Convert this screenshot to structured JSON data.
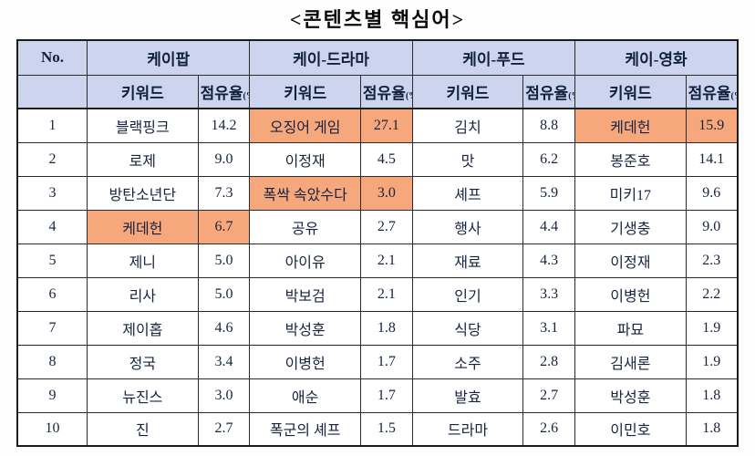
{
  "title": "<콘텐츠별 핵심어>",
  "colors": {
    "header_bg": "#ccd5ed",
    "highlight_bg": "#f6a77c",
    "text": "#17233f",
    "border": "#1c1c1c"
  },
  "table": {
    "no_header": "No.",
    "keyword_header": "키워드",
    "share_header": "점유율",
    "share_unit": "(%)",
    "groups": [
      "케이팝",
      "케이-드라마",
      "케이-푸드",
      "케이-영화"
    ],
    "rows": [
      {
        "no": "1",
        "cells": [
          {
            "kw": "블랙핑크",
            "v": "14.2",
            "hl": false
          },
          {
            "kw": "오징어 게임",
            "v": "27.1",
            "hl": true
          },
          {
            "kw": "김치",
            "v": "8.8",
            "hl": false
          },
          {
            "kw": "케데헌",
            "v": "15.9",
            "hl": true
          }
        ]
      },
      {
        "no": "2",
        "cells": [
          {
            "kw": "로제",
            "v": "9.0",
            "hl": false
          },
          {
            "kw": "이정재",
            "v": "4.5",
            "hl": false
          },
          {
            "kw": "맛",
            "v": "6.2",
            "hl": false
          },
          {
            "kw": "봉준호",
            "v": "14.1",
            "hl": false
          }
        ]
      },
      {
        "no": "3",
        "cells": [
          {
            "kw": "방탄소년단",
            "v": "7.3",
            "hl": false
          },
          {
            "kw": "폭싹 속았수다",
            "v": "3.0",
            "hl": true
          },
          {
            "kw": "셰프",
            "v": "5.9",
            "hl": false
          },
          {
            "kw": "미키17",
            "v": "9.6",
            "hl": false
          }
        ]
      },
      {
        "no": "4",
        "cells": [
          {
            "kw": "케데헌",
            "v": "6.7",
            "hl": true
          },
          {
            "kw": "공유",
            "v": "2.7",
            "hl": false
          },
          {
            "kw": "행사",
            "v": "4.4",
            "hl": false
          },
          {
            "kw": "기생충",
            "v": "9.0",
            "hl": false
          }
        ]
      },
      {
        "no": "5",
        "cells": [
          {
            "kw": "제니",
            "v": "5.0",
            "hl": false
          },
          {
            "kw": "아이유",
            "v": "2.1",
            "hl": false
          },
          {
            "kw": "재료",
            "v": "4.3",
            "hl": false
          },
          {
            "kw": "이정재",
            "v": "2.3",
            "hl": false
          }
        ]
      },
      {
        "no": "6",
        "cells": [
          {
            "kw": "리사",
            "v": "5.0",
            "hl": false
          },
          {
            "kw": "박보검",
            "v": "2.1",
            "hl": false
          },
          {
            "kw": "인기",
            "v": "3.3",
            "hl": false
          },
          {
            "kw": "이병헌",
            "v": "2.2",
            "hl": false
          }
        ]
      },
      {
        "no": "7",
        "cells": [
          {
            "kw": "제이홉",
            "v": "4.6",
            "hl": false
          },
          {
            "kw": "박성훈",
            "v": "1.8",
            "hl": false
          },
          {
            "kw": "식당",
            "v": "3.1",
            "hl": false
          },
          {
            "kw": "파묘",
            "v": "1.9",
            "hl": false
          }
        ]
      },
      {
        "no": "8",
        "cells": [
          {
            "kw": "정국",
            "v": "3.4",
            "hl": false
          },
          {
            "kw": "이병헌",
            "v": "1.7",
            "hl": false
          },
          {
            "kw": "소주",
            "v": "2.8",
            "hl": false
          },
          {
            "kw": "김새론",
            "v": "1.9",
            "hl": false
          }
        ]
      },
      {
        "no": "9",
        "cells": [
          {
            "kw": "뉴진스",
            "v": "3.0",
            "hl": false
          },
          {
            "kw": "애순",
            "v": "1.7",
            "hl": false
          },
          {
            "kw": "발효",
            "v": "2.7",
            "hl": false
          },
          {
            "kw": "박성훈",
            "v": "1.8",
            "hl": false
          }
        ]
      },
      {
        "no": "10",
        "cells": [
          {
            "kw": "진",
            "v": "2.7",
            "hl": false
          },
          {
            "kw": "폭군의 셰프",
            "v": "1.5",
            "hl": false
          },
          {
            "kw": "드라마",
            "v": "2.6",
            "hl": false
          },
          {
            "kw": "이민호",
            "v": "1.8",
            "hl": false
          }
        ]
      }
    ]
  }
}
